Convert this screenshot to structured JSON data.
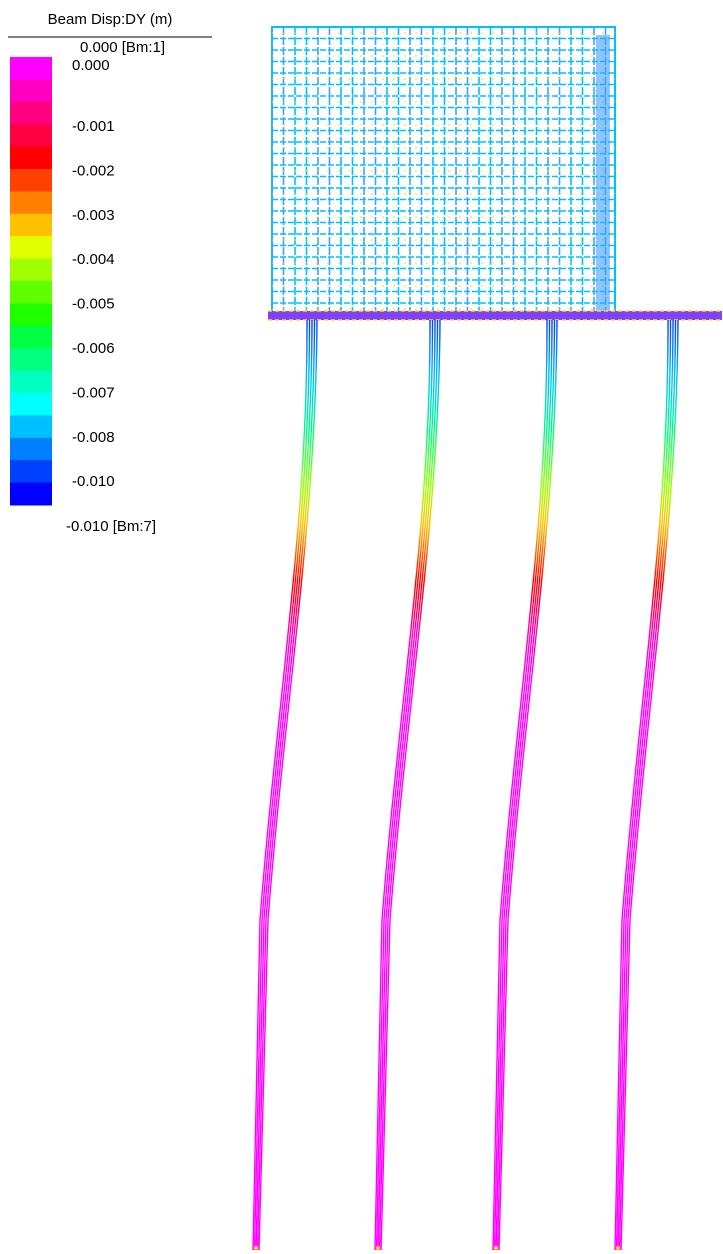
{
  "legend": {
    "title": "Beam Disp:DY (m)",
    "max_label": "0.000 [Bm:1]",
    "labels": [
      "0.000",
      "-0.001",
      "-0.002",
      "-0.003",
      "-0.004",
      "-0.005",
      "-0.006",
      "-0.007",
      "-0.008",
      "-0.010"
    ],
    "min_label": "-0.010 [Bm:7]",
    "colors": [
      "#ff00ff",
      "#ff00c0",
      "#ff0080",
      "#ff0040",
      "#ff0000",
      "#ff4000",
      "#ff8000",
      "#ffc000",
      "#e0ff00",
      "#a0ff00",
      "#60ff00",
      "#20ff00",
      "#00ff40",
      "#00ff80",
      "#00ffc0",
      "#00ffff",
      "#00c0ff",
      "#0080ff",
      "#0040ff",
      "#0000ff"
    ]
  }
}
